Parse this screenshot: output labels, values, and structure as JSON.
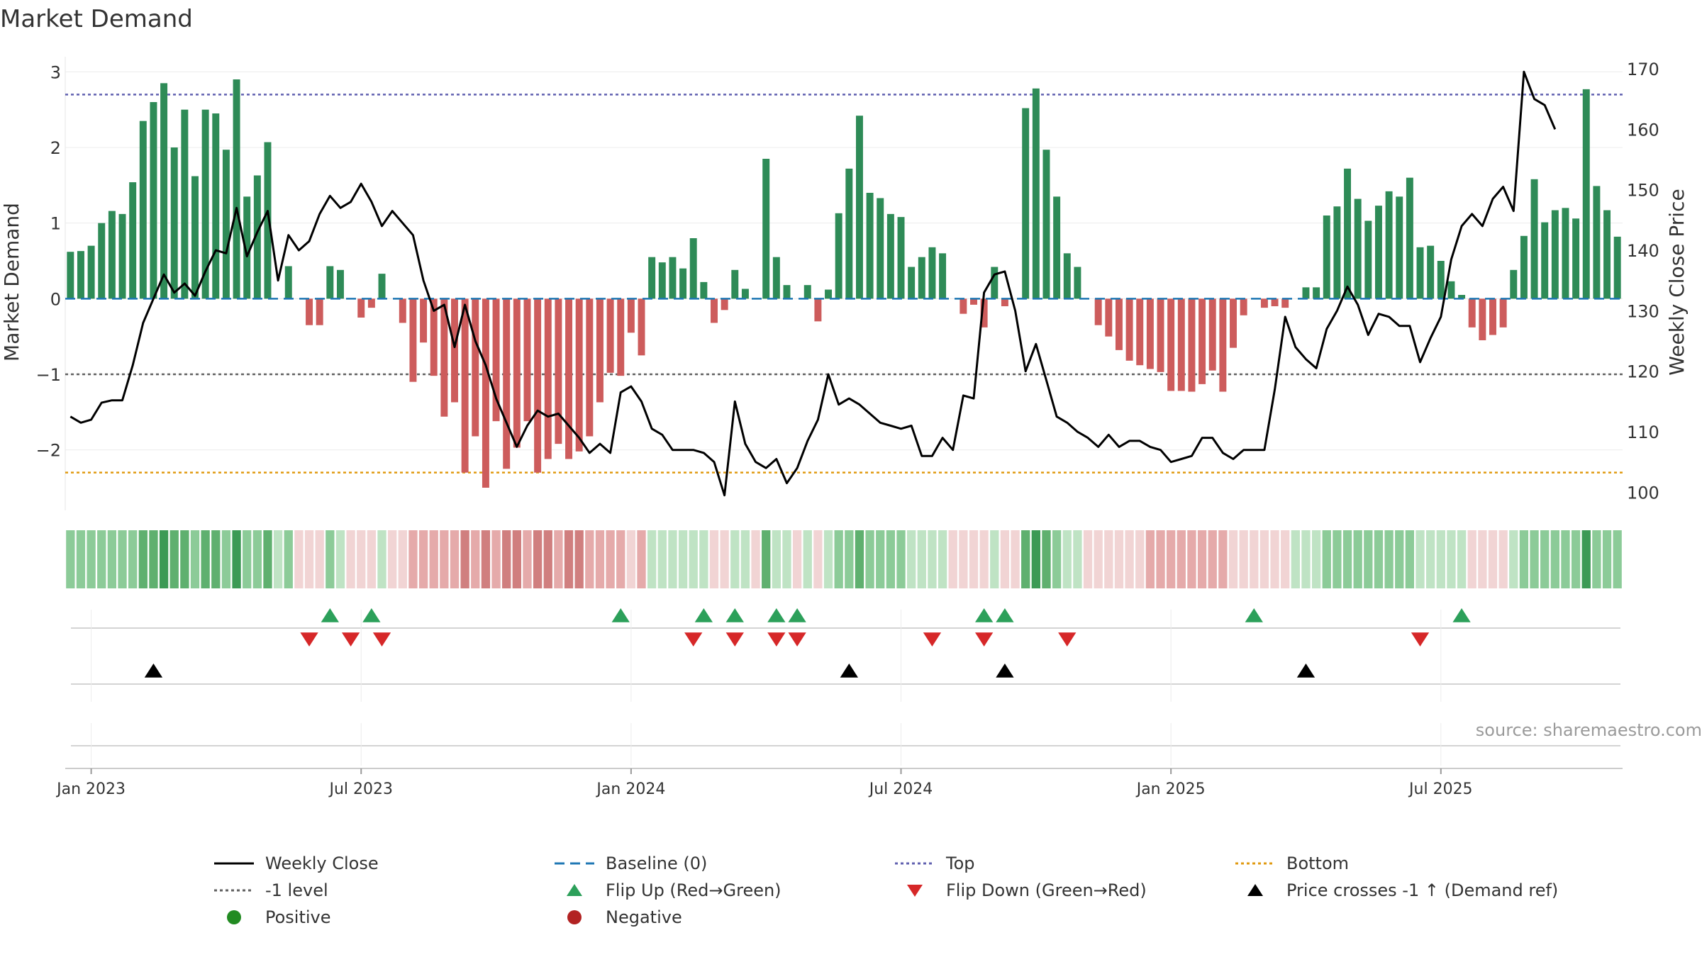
{
  "colors": {
    "green": "#2e8b57",
    "red": "#cd5c5c",
    "line": "#000000",
    "baseline": "#1f77b4",
    "top": "#6060b0",
    "level": "#606060",
    "bottom": "#e09a10",
    "flip_up": "#2ca05a",
    "flip_down": "#d62728",
    "pos_dot": "#228b22",
    "neg_dot": "#b22222"
  },
  "chart_data": {
    "type": "bar",
    "title": "Market Demand",
    "ylabel": "Market Demand",
    "y2label": "Weekly Close Price",
    "ylim": [
      -2.8,
      3.2
    ],
    "y2lim": [
      97,
      172
    ],
    "yticks": [
      3,
      2,
      1,
      0,
      -1,
      -2
    ],
    "ytick_labels": [
      "3",
      "2",
      "1",
      "0",
      "−1",
      "−2"
    ],
    "y2ticks": [
      170,
      160,
      150,
      140,
      130,
      120,
      110,
      100
    ],
    "y2tick_labels": [
      "170",
      "160",
      "150",
      "140",
      "130",
      "120",
      "110",
      "100"
    ],
    "xticks": [
      "Jan 2023",
      "Jul 2023",
      "Jan 2024",
      "Jul 2024",
      "Jan 2025",
      "Jul 2025"
    ],
    "start_week": -2,
    "tick_weeks": [
      0,
      26,
      52,
      78,
      104,
      130
    ],
    "reference_lines": {
      "top": 2.7,
      "level": -1,
      "bottom": -2.3,
      "baseline": 0
    },
    "demand": [
      0.62,
      0.63,
      0.7,
      1.0,
      1.16,
      1.12,
      1.54,
      2.35,
      2.6,
      2.85,
      2.0,
      2.5,
      1.62,
      2.5,
      2.45,
      1.97,
      2.9,
      1.35,
      1.63,
      2.07,
      0,
      0.43,
      0,
      -0.35,
      -0.35,
      0.43,
      0.38,
      0,
      -0.25,
      -0.12,
      0.33,
      0,
      -0.32,
      -1.1,
      -0.58,
      -1.02,
      -1.56,
      -1.37,
      -2.3,
      -1.82,
      -2.5,
      -1.62,
      -2.25,
      -1.97,
      -1.62,
      -2.3,
      -2.12,
      -1.92,
      -2.12,
      -2.02,
      -1.82,
      -1.37,
      -0.98,
      -1.02,
      -0.45,
      -0.75,
      0.55,
      0.48,
      0.55,
      0.4,
      0.8,
      0.22,
      -0.32,
      -0.15,
      0.38,
      0.13,
      0,
      1.85,
      0.55,
      0.18,
      0,
      0.18,
      -0.3,
      0.12,
      1.13,
      1.72,
      2.42,
      1.4,
      1.33,
      1.12,
      1.08,
      0.42,
      0.55,
      0.68,
      0.6,
      0,
      -0.2,
      -0.08,
      -0.38,
      0.42,
      -0.1,
      0,
      2.52,
      2.78,
      1.97,
      1.35,
      0.6,
      0.42,
      0,
      -0.35,
      -0.5,
      -0.68,
      -0.82,
      -0.88,
      -0.93,
      -0.97,
      -1.22,
      -1.22,
      -1.23,
      -1.13,
      -0.95,
      -1.23,
      -0.65,
      -0.22,
      0,
      -0.12,
      -0.1,
      -0.12,
      0,
      0.15,
      0.15,
      1.1,
      1.22,
      1.72,
      1.32,
      1.03,
      1.23,
      1.42,
      1.35,
      1.6,
      0.68,
      0.7,
      0.5,
      0.23,
      0.05,
      -0.38,
      -0.55,
      -0.48,
      -0.38,
      0.38,
      0.83,
      1.58,
      1.01,
      1.17,
      1.2,
      1.06,
      2.77,
      1.49,
      1.17,
      0.82
    ],
    "close": [
      112.5,
      111.5,
      112,
      114.8,
      115.2,
      115.2,
      121,
      128,
      132,
      136,
      133,
      134.5,
      132.5,
      136.5,
      140,
      139.5,
      147,
      139,
      143,
      146.5,
      135,
      142.5,
      140,
      141.5,
      146,
      149,
      147,
      148,
      151,
      148,
      144,
      146.5,
      144.5,
      142.5,
      135,
      130,
      131,
      124,
      131,
      125,
      121,
      115.5,
      111.5,
      107.5,
      111,
      113.5,
      112.5,
      113,
      111,
      109,
      106.5,
      108,
      106.5,
      116.5,
      117.5,
      115,
      110.5,
      109.5,
      107,
      107,
      107,
      106.5,
      105,
      99.5,
      115,
      108,
      105,
      104,
      105.5,
      101.5,
      104,
      108.5,
      112,
      119.5,
      114.5,
      115.5,
      114.5,
      113,
      111.5,
      111,
      110.5,
      111,
      106,
      106,
      109,
      107,
      116,
      115.5,
      133,
      136,
      136.5,
      130,
      120,
      124.5,
      118.5,
      112.5,
      111.5,
      110,
      109,
      107.5,
      109.5,
      107.5,
      108.5,
      108.5,
      107.5,
      107,
      105,
      105.5,
      106,
      109,
      109,
      106.5,
      105.5,
      107,
      107,
      107,
      117,
      129,
      124,
      122,
      120.5,
      127,
      130,
      134,
      131,
      126,
      129.5,
      129,
      127.5,
      127.5,
      121.5,
      125.5,
      129,
      138.5,
      144,
      146,
      144,
      148.5,
      150.5,
      146.5,
      169.5,
      165,
      164,
      160
    ],
    "heat": [
      2,
      2,
      2,
      2,
      2,
      2,
      2,
      3,
      3,
      4,
      3,
      3,
      2,
      3,
      3,
      2,
      4,
      2,
      2,
      3,
      1,
      2,
      -1,
      -1,
      -1,
      2,
      1,
      -1,
      -1,
      -1,
      1,
      -1,
      -1,
      -2,
      -2,
      -2,
      -2,
      -2,
      -3,
      -2,
      -3,
      -2,
      -3,
      -3,
      -2,
      -3,
      -3,
      -2,
      -3,
      -3,
      -2,
      -2,
      -2,
      -2,
      -1,
      -2,
      1,
      1,
      1,
      1,
      1,
      1,
      -1,
      -1,
      1,
      1,
      -1,
      3,
      1,
      1,
      -1,
      1,
      -1,
      1,
      2,
      2,
      3,
      2,
      2,
      2,
      2,
      1,
      1,
      1,
      1,
      -1,
      -1,
      -1,
      -1,
      1,
      -1,
      -1,
      3,
      4,
      3,
      2,
      1,
      1,
      -1,
      -1,
      -1,
      -1,
      -1,
      -1,
      -2,
      -2,
      -2,
      -2,
      -2,
      -2,
      -2,
      -2,
      -1,
      -1,
      -1,
      -1,
      -1,
      -1,
      1,
      1,
      1,
      2,
      2,
      2,
      2,
      2,
      2,
      2,
      2,
      2,
      1,
      1,
      1,
      1,
      1,
      -1,
      -1,
      -1,
      -1,
      1,
      2,
      2,
      2,
      2,
      2,
      2,
      4,
      2,
      2,
      2
    ],
    "flip_up_weeks": [
      23,
      27,
      51,
      59,
      62,
      66,
      68,
      86,
      88,
      112,
      132
    ],
    "flip_down_weeks": [
      21,
      25,
      28,
      58,
      62,
      66,
      68,
      81,
      86,
      94,
      128
    ],
    "cross_weeks": [
      6,
      73,
      88,
      117
    ]
  },
  "legend": [
    {
      "label": "Weekly Close",
      "kind": "line"
    },
    {
      "label": "Baseline (0)",
      "kind": "baseline"
    },
    {
      "label": "Top",
      "kind": "top"
    },
    {
      "label": "Bottom",
      "kind": "bottom"
    },
    {
      "label": "-1 level",
      "kind": "level"
    },
    {
      "label": "Flip Up (Red→Green)",
      "kind": "up"
    },
    {
      "label": "Flip Down (Green→Red)",
      "kind": "down"
    },
    {
      "label": "Price crosses -1 ↑ (Demand ref)",
      "kind": "cross"
    },
    {
      "label": "Positive",
      "kind": "pos"
    },
    {
      "label": "Negative",
      "kind": "neg"
    }
  ],
  "source": "source: sharemaestro.com"
}
